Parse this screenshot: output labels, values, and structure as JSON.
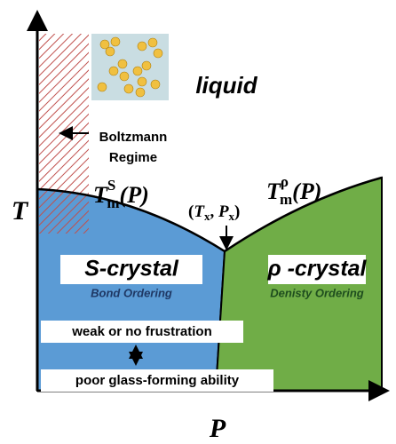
{
  "axes": {
    "y_label": "T",
    "x_label": "P"
  },
  "regions": {
    "liquid": "liquid",
    "boltzmann": [
      "Boltzmann",
      "Regime"
    ]
  },
  "curves": {
    "s_melting": {
      "base": "T",
      "sub": "m",
      "sup": "S",
      "arg": "(P)"
    },
    "rho_melting": {
      "base": "T",
      "sub": "m",
      "sup": "ρ",
      "arg": "(P)"
    },
    "crossing": {
      "open": "(",
      "t": "T",
      "t_sub": "x",
      "sep": ", ",
      "p": "P",
      "p_sub": "x",
      "close": ")"
    }
  },
  "phases": {
    "s_crystal": {
      "name": "S-crystal",
      "ordering": "Bond Ordering"
    },
    "rho_crystal": {
      "name": "ρ -crystal",
      "ordering": "Denisty Ordering"
    }
  },
  "notes": [
    "weak or no frustration",
    "poor glass-forming ability"
  ]
}
